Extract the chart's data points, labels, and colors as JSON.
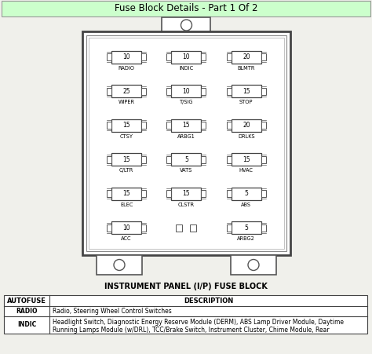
{
  "title": "Fuse Block Details - Part 1 Of 2",
  "title_bg": "#ccffcc",
  "diagram_label": "INSTRUMENT PANEL (I/P) FUSE BLOCK",
  "fuses": [
    {
      "row": 0,
      "col": 0,
      "amp": "10",
      "name": "RADIO"
    },
    {
      "row": 0,
      "col": 1,
      "amp": "10",
      "name": "INDIC"
    },
    {
      "row": 0,
      "col": 2,
      "amp": "20",
      "name": "BLMTR"
    },
    {
      "row": 1,
      "col": 0,
      "amp": "25",
      "name": "WIPER"
    },
    {
      "row": 1,
      "col": 1,
      "amp": "10",
      "name": "T/SIG"
    },
    {
      "row": 1,
      "col": 2,
      "amp": "15",
      "name": "STOP"
    },
    {
      "row": 2,
      "col": 0,
      "amp": "15",
      "name": "CTSY"
    },
    {
      "row": 2,
      "col": 1,
      "amp": "15",
      "name": "ARBG1"
    },
    {
      "row": 2,
      "col": 2,
      "amp": "20",
      "name": "DRLKS"
    },
    {
      "row": 3,
      "col": 0,
      "amp": "15",
      "name": "C/LTR"
    },
    {
      "row": 3,
      "col": 1,
      "amp": "5",
      "name": "VATS"
    },
    {
      "row": 3,
      "col": 2,
      "amp": "15",
      "name": "HVAC"
    },
    {
      "row": 4,
      "col": 0,
      "amp": "15",
      "name": "ELEC"
    },
    {
      "row": 4,
      "col": 1,
      "amp": "15",
      "name": "CLSTR"
    },
    {
      "row": 4,
      "col": 2,
      "amp": "5",
      "name": "ABS"
    },
    {
      "row": 5,
      "col": 0,
      "amp": "10",
      "name": "ACC"
    },
    {
      "row": 5,
      "col": 1,
      "amp": "",
      "name": ""
    },
    {
      "row": 5,
      "col": 2,
      "amp": "5",
      "name": "ARBG2"
    }
  ],
  "table_headers": [
    "AUTOFUSE",
    "DESCRIPTION"
  ],
  "table_rows": [
    [
      "RADIO",
      "Radio, Steering Wheel Control Switches"
    ],
    [
      "INDIC",
      "Headlight Switch, Diagnostic Energy Reserve Module (DERM), ABS Lamp Driver Module, Daytime\nRunning Lamps Module (w/DRL), TCC/Brake Switch, Instrument Cluster, Chime Module, Rear"
    ]
  ],
  "bg_color": "#f0f0eb",
  "title_fontsize": 8.5,
  "fuse_amp_fontsize": 5.5,
  "fuse_name_fontsize": 4.8,
  "diagram_label_fontsize": 7.0,
  "table_header_fontsize": 6.0,
  "table_cell_fontsize": 5.5
}
